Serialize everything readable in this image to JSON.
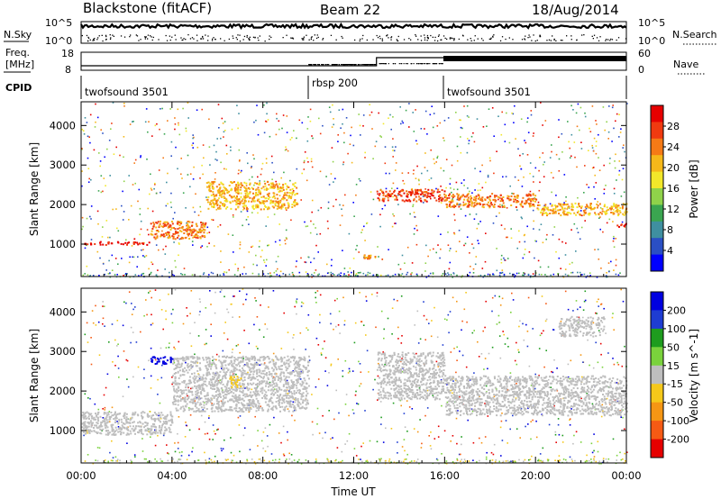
{
  "header": {
    "station": "Blackstone (fitACF)",
    "beam": "Beam 22",
    "date": "18/Aug/2014"
  },
  "noise_panel": {
    "left_label": "N.Sky",
    "left_ticks": [
      "10^5",
      "10^0"
    ],
    "right_ticks": [
      "10^5",
      "10^0"
    ],
    "right_label": "N.Search"
  },
  "freq_panel": {
    "left_label_line1": "Freq.",
    "left_label_line2": "[MHz]",
    "left_ticks": [
      "18",
      "8"
    ],
    "right_ticks": [
      "60",
      "0"
    ],
    "right_label": "Nave"
  },
  "cpid_panel": {
    "label": "CPID",
    "modes": [
      {
        "name": "twofsound 3501",
        "start_hour": 0
      },
      {
        "name": "rbsp 200",
        "start_hour": 10
      },
      {
        "name": "twofsound 3501",
        "start_hour": 16
      }
    ]
  },
  "chart_data": [
    {
      "type": "heatmap",
      "quantity": "Power",
      "ylabel": "Slant Range [km]",
      "xlabel": "Time UT",
      "xlim_hours": [
        0,
        24
      ],
      "ylim": [
        180,
        4600
      ],
      "yticks": [
        1000,
        2000,
        3000,
        4000
      ],
      "colorbar": {
        "label": "Power [dB]",
        "ticks": [
          "4",
          "8",
          "12",
          "16",
          "20",
          "24",
          "28"
        ],
        "colors": [
          "#0000ff",
          "#2a4fc4",
          "#3f8fa0",
          "#3aa550",
          "#8fd24a",
          "#f2e72a",
          "#f5b81a",
          "#f57a16",
          "#f03a10",
          "#e60000"
        ]
      },
      "echo_bands": [
        {
          "t0": 0.0,
          "t1": 3.0,
          "r0": 1000,
          "r1": 1080,
          "level": 26
        },
        {
          "t0": 3.0,
          "t1": 5.5,
          "r0": 1150,
          "r1": 1600,
          "level": 22
        },
        {
          "t0": 5.5,
          "t1": 9.5,
          "r0": 1900,
          "r1": 2600,
          "level": 18
        },
        {
          "t0": 12.0,
          "t1": 13.0,
          "r0": 650,
          "r1": 750,
          "level": 22
        },
        {
          "t0": 13.0,
          "t1": 16.0,
          "r0": 2100,
          "r1": 2400,
          "level": 24
        },
        {
          "t0": 16.0,
          "t1": 20.0,
          "r0": 1950,
          "r1": 2300,
          "level": 22
        },
        {
          "t0": 20.0,
          "t1": 24.0,
          "r0": 1750,
          "r1": 2050,
          "level": 20
        },
        {
          "t0": 23.5,
          "t1": 24.0,
          "r0": 1450,
          "r1": 1550,
          "level": 28
        }
      ]
    },
    {
      "type": "heatmap",
      "quantity": "Velocity",
      "ylabel": "Slant Range [km]",
      "xlabel": "Time UT",
      "xlim_hours": [
        0,
        24
      ],
      "ylim": [
        180,
        4600
      ],
      "yticks": [
        1000,
        2000,
        3000,
        4000
      ],
      "xticks": [
        "00:00",
        "04:00",
        "08:00",
        "12:00",
        "16:00",
        "20:00",
        "00:00"
      ],
      "colorbar": {
        "label": "Velocity [m s^-1]",
        "ticks": [
          "200",
          "100",
          "50",
          "15",
          "-15",
          "-50",
          "-100",
          "-200"
        ],
        "colors": [
          "#0000e0",
          "#1e3cd2",
          "#1e9c1e",
          "#7ad23c",
          "#bebebe",
          "#f5c81a",
          "#f59614",
          "#f55a14",
          "#e60000"
        ]
      },
      "echo_bands": [
        {
          "t0": 0.0,
          "t1": 4.0,
          "r0": 900,
          "r1": 1500,
          "velocity": 0
        },
        {
          "t0": 4.0,
          "t1": 10.0,
          "r0": 1500,
          "r1": 2900,
          "velocity": 0
        },
        {
          "t0": 3.0,
          "t1": 4.0,
          "r0": 2700,
          "r1": 2900,
          "velocity": 200
        },
        {
          "t0": 6.5,
          "t1": 7.0,
          "r0": 2100,
          "r1": 2400,
          "velocity": -50
        },
        {
          "t0": 13.0,
          "t1": 16.0,
          "r0": 1800,
          "r1": 3000,
          "velocity": 0
        },
        {
          "t0": 16.0,
          "t1": 24.0,
          "r0": 1400,
          "r1": 2400,
          "velocity": 0
        },
        {
          "t0": 21.0,
          "t1": 23.0,
          "r0": 3400,
          "r1": 3900,
          "velocity": -15
        }
      ]
    }
  ],
  "xaxis": {
    "label": "Time UT",
    "ticks": [
      "00:00",
      "04:00",
      "08:00",
      "12:00",
      "16:00",
      "20:00",
      "00:00"
    ]
  },
  "colors": {
    "background": "#ffffff",
    "axes": "#000000"
  }
}
